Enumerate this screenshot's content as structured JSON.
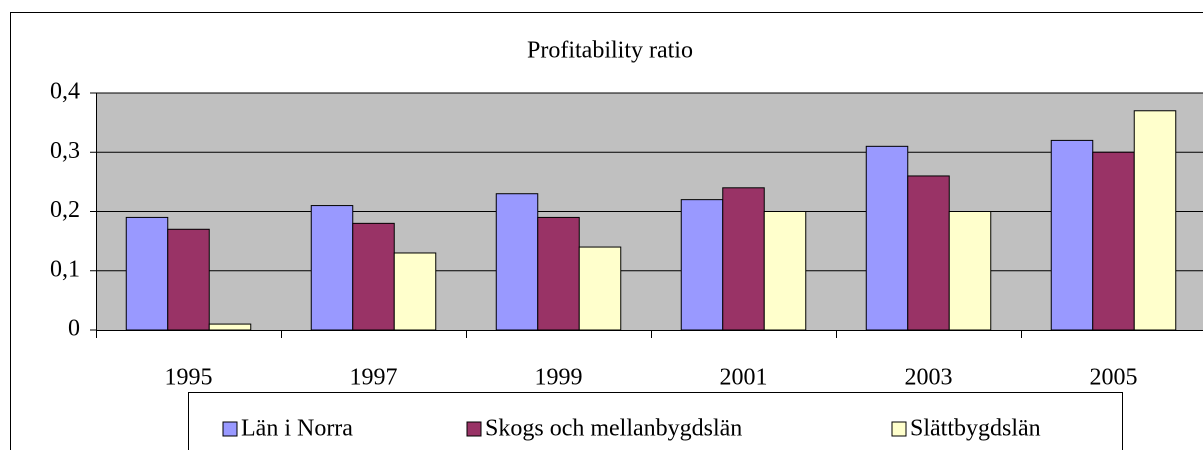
{
  "chart_data": {
    "type": "bar",
    "title": "Profitability ratio",
    "categories": [
      "1995",
      "1997",
      "1999",
      "2001",
      "2003",
      "2005"
    ],
    "series": [
      {
        "name": "Län i Norra",
        "color": "#9999ff",
        "values": [
          0.19,
          0.21,
          0.23,
          0.22,
          0.31,
          0.32
        ]
      },
      {
        "name": "Skogs och mellanbygdslän",
        "color": "#993366",
        "values": [
          0.17,
          0.18,
          0.19,
          0.24,
          0.26,
          0.3
        ]
      },
      {
        "name": "Slättbygdslän",
        "color": "#ffffcc",
        "values": [
          0.01,
          0.13,
          0.14,
          0.2,
          0.2,
          0.37
        ]
      }
    ],
    "ylim": [
      0,
      0.4
    ],
    "yticks": [
      0,
      {
        "value": 0.1,
        "label": "0,1"
      },
      {
        "value": 0.2,
        "label": "0,2"
      },
      {
        "value": 0.3,
        "label": "0,3"
      },
      {
        "value": 0.4,
        "label": "0,4"
      }
    ],
    "grid": true,
    "legend": "bottom"
  }
}
